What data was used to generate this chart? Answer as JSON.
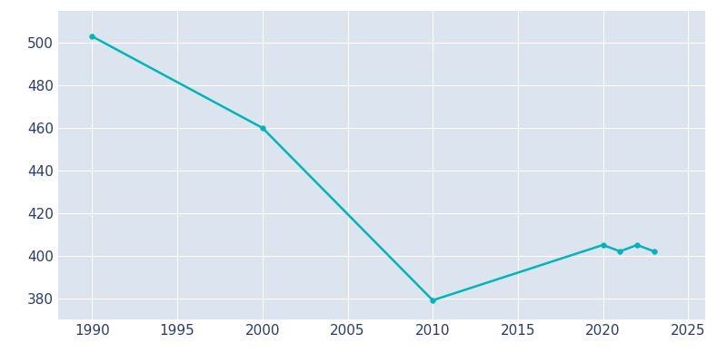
{
  "years": [
    1990,
    2000,
    2010,
    2020,
    2021,
    2022,
    2023
  ],
  "population": [
    503,
    460,
    379,
    405,
    402,
    405,
    402
  ],
  "line_color": "#00B5B5",
  "background_color": "#E8EDF5",
  "plot_background_color": "#DCE4EF",
  "grid_color": "#ffffff",
  "text_color": "#2B3A6B",
  "outer_background": "#ffffff",
  "xlim": [
    1988,
    2026
  ],
  "ylim": [
    370,
    515
  ],
  "xticks": [
    1990,
    1995,
    2000,
    2005,
    2010,
    2015,
    2020,
    2025
  ],
  "yticks": [
    380,
    400,
    420,
    440,
    460,
    480,
    500
  ],
  "linewidth": 1.8,
  "markersize": 4,
  "figsize": [
    8.0,
    4.0
  ],
  "dpi": 100
}
